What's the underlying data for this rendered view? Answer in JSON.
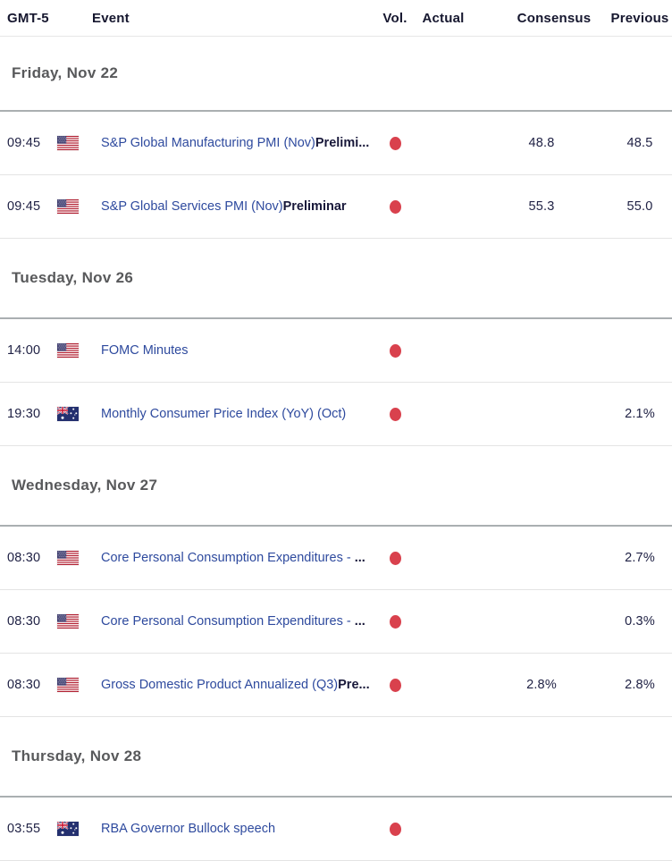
{
  "header": {
    "columns": [
      {
        "key": "time",
        "label": "GMT-5"
      },
      {
        "key": "event",
        "label": "Event"
      },
      {
        "key": "vol",
        "label": "Vol."
      },
      {
        "key": "actual",
        "label": "Actual"
      },
      {
        "key": "consensus",
        "label": "Consensus"
      },
      {
        "key": "previous",
        "label": "Previous"
      }
    ]
  },
  "colors": {
    "event_link_blue": "#2e4a9e",
    "volatility_high_red": "#d9414d",
    "date_header_gray": "#58595b",
    "text_dark_navy": "#202245",
    "row_divider": "#e4e4e4",
    "section_divider": "#aaafb1"
  },
  "icons": {
    "volatility_high": "volatility-high-dot-icon",
    "flag_us": "us-flag-icon",
    "flag_au": "au-flag-icon"
  },
  "sections": [
    {
      "date": "Friday, Nov 22",
      "events": [
        {
          "time": "09:45",
          "country": "US",
          "event": "S&P Global Manufacturing PMI (Nov)",
          "event_suffix": "Prelimi...",
          "volatility": "high",
          "actual": "",
          "consensus": "48.8",
          "previous": "48.5"
        },
        {
          "time": "09:45",
          "country": "US",
          "event": "S&P Global Services PMI (Nov)",
          "event_suffix": "Preliminar",
          "volatility": "high",
          "actual": "",
          "consensus": "55.3",
          "previous": "55.0"
        }
      ]
    },
    {
      "date": "Tuesday, Nov 26",
      "events": [
        {
          "time": "14:00",
          "country": "US",
          "event": "FOMC Minutes",
          "event_suffix": "",
          "volatility": "high",
          "actual": "",
          "consensus": "",
          "previous": ""
        },
        {
          "time": "19:30",
          "country": "AU",
          "event": "Monthly Consumer Price Index (YoY) (Oct)",
          "event_suffix": "",
          "volatility": "high",
          "actual": "",
          "consensus": "",
          "previous": "2.1%"
        }
      ]
    },
    {
      "date": "Wednesday, Nov 27",
      "events": [
        {
          "time": "08:30",
          "country": "US",
          "event": "Core Personal Consumption Expenditures - ",
          "event_suffix": "...",
          "volatility": "high",
          "actual": "",
          "consensus": "",
          "previous": "2.7%"
        },
        {
          "time": "08:30",
          "country": "US",
          "event": "Core Personal Consumption Expenditures - ",
          "event_suffix": "...",
          "volatility": "high",
          "actual": "",
          "consensus": "",
          "previous": "0.3%"
        },
        {
          "time": "08:30",
          "country": "US",
          "event": "Gross Domestic Product Annualized (Q3)",
          "event_suffix": "Pre...",
          "volatility": "high",
          "actual": "",
          "consensus": "2.8%",
          "previous": "2.8%"
        }
      ]
    },
    {
      "date": "Thursday, Nov 28",
      "events": [
        {
          "time": "03:55",
          "country": "AU",
          "event": "RBA Governor Bullock speech",
          "event_suffix": "",
          "volatility": "high",
          "actual": "",
          "consensus": "",
          "previous": ""
        }
      ]
    }
  ]
}
